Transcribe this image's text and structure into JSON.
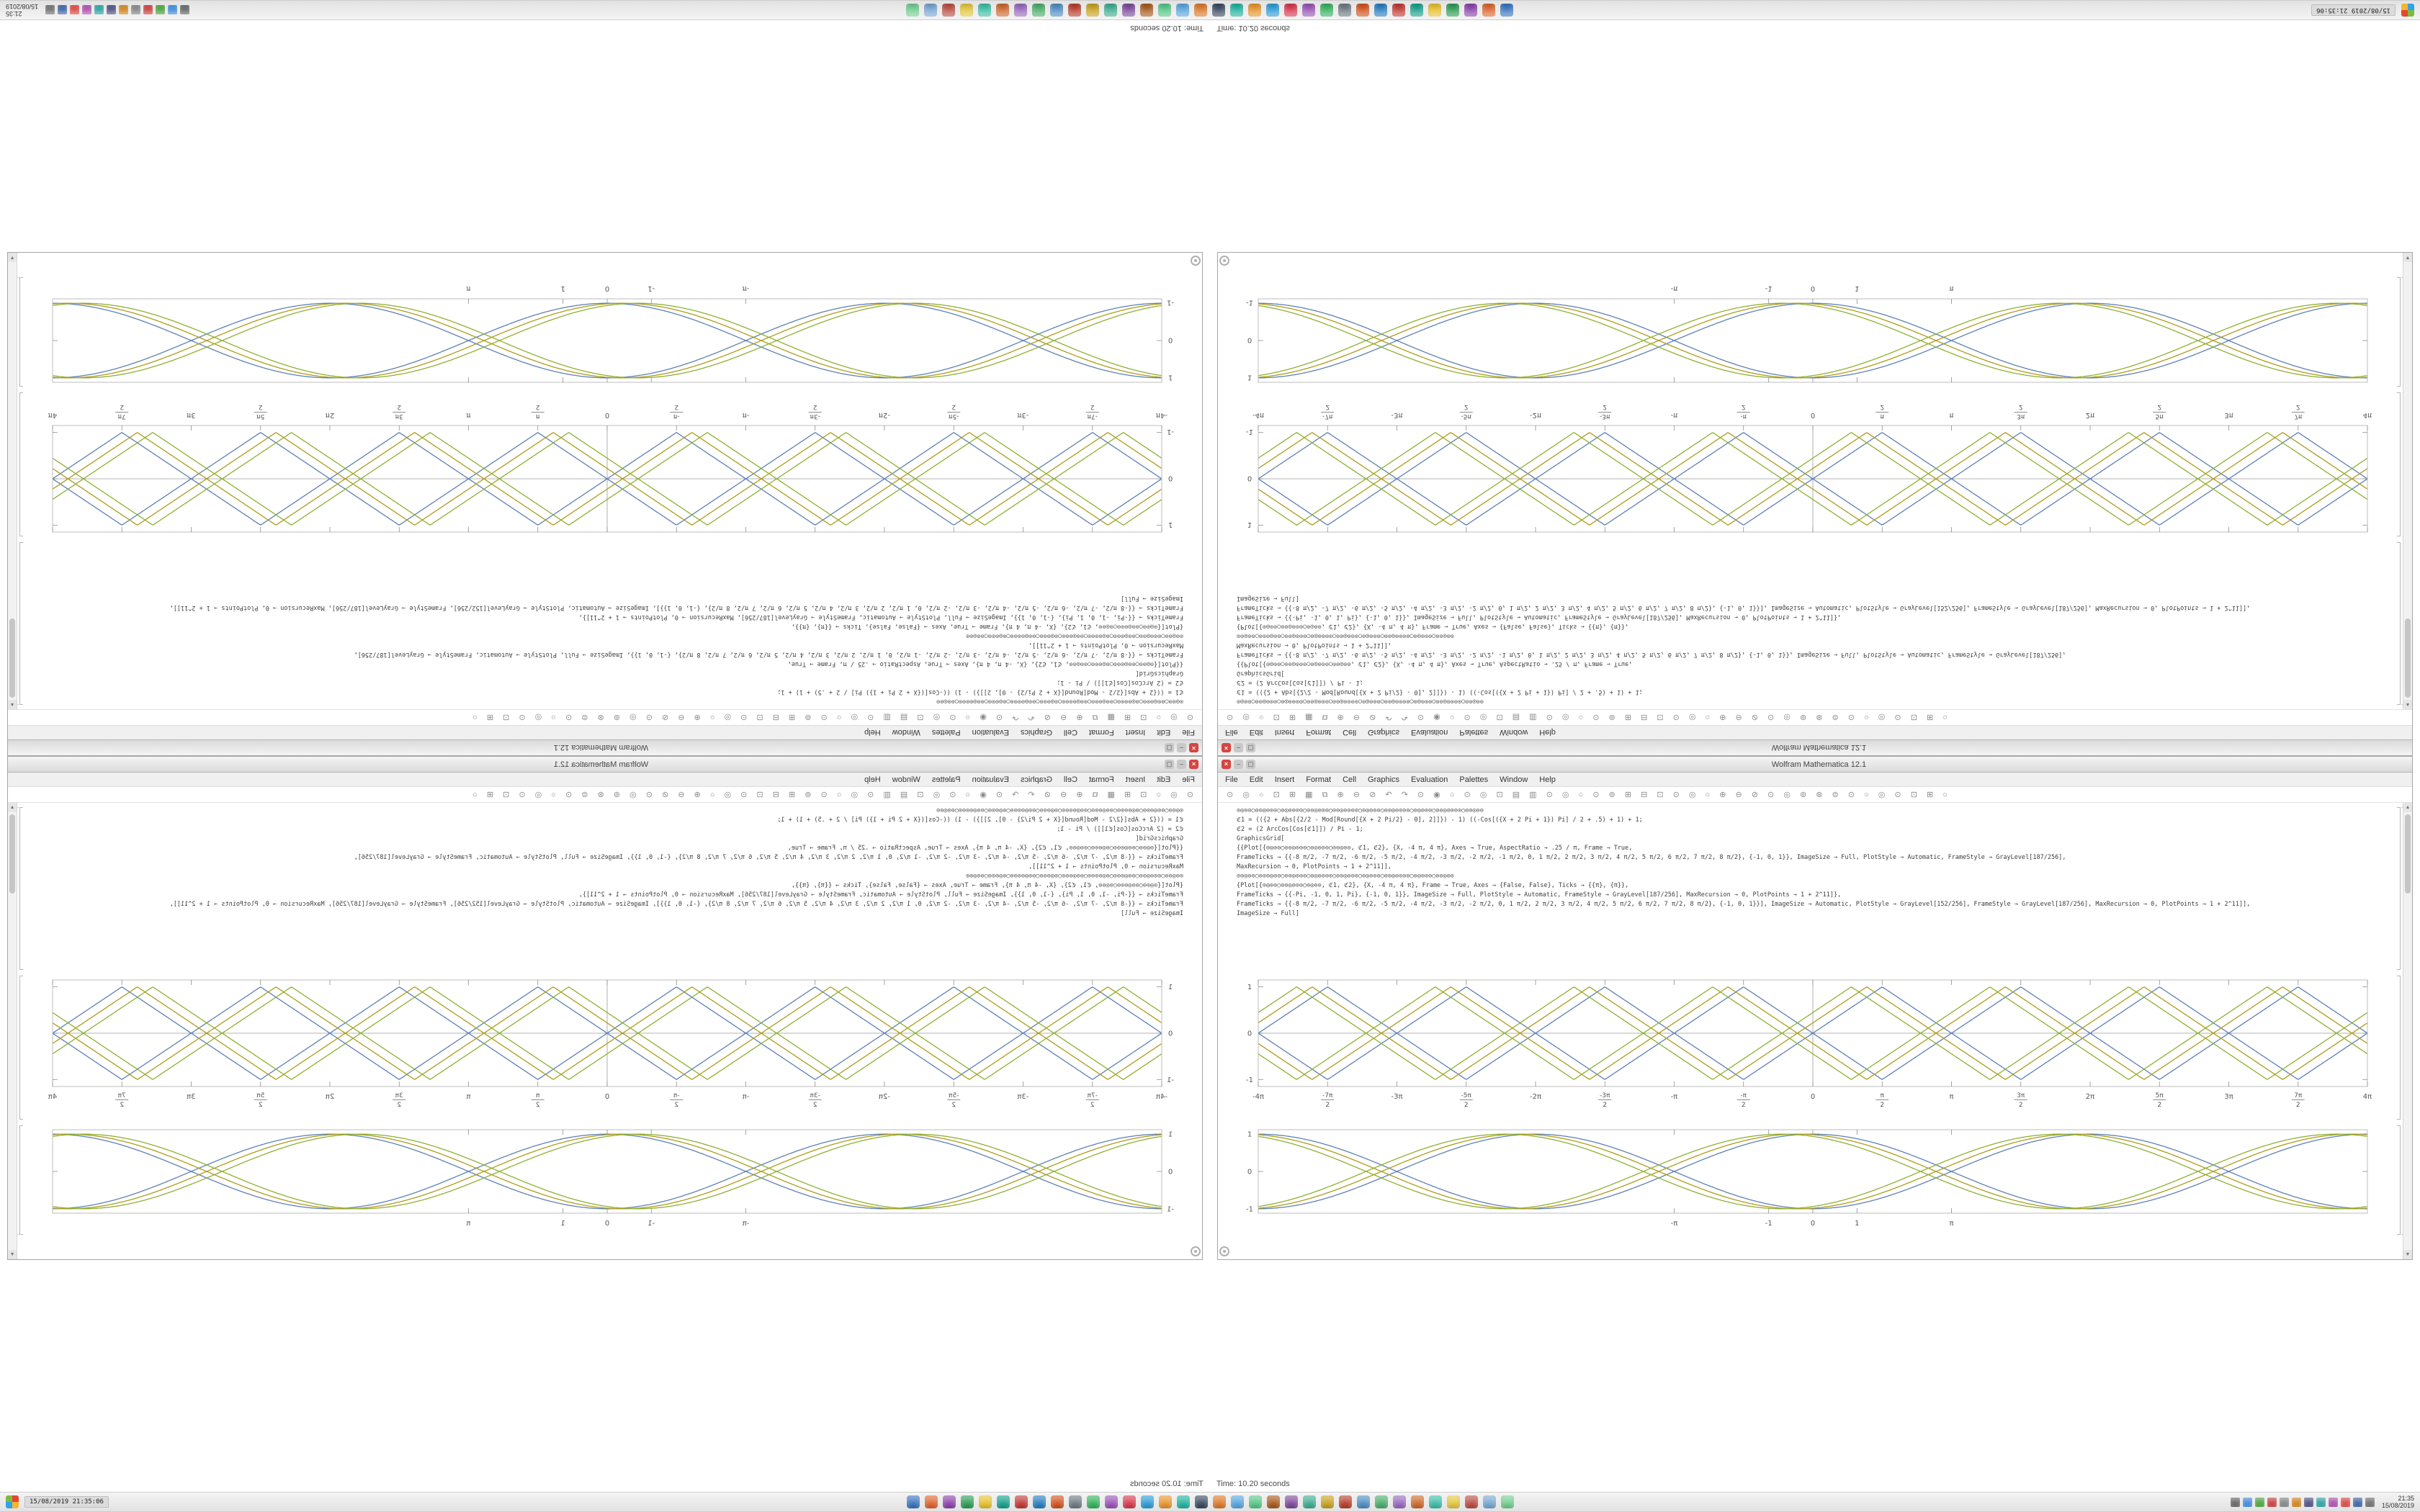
{
  "status": {
    "text": "Time: 10.20 seconds"
  },
  "taskbar": {
    "stamp": "15/08/2019  21:35:06",
    "clock_time": "21:35",
    "clock_date": "15/08/2019",
    "app_icons": [
      {
        "name": "app-icon-01",
        "color": "#3b76c0"
      },
      {
        "name": "app-icon-02",
        "color": "#e0662f"
      },
      {
        "name": "app-icon-03",
        "color": "#8e44ad"
      },
      {
        "name": "app-icon-04",
        "color": "#2f9e57"
      },
      {
        "name": "app-icon-05",
        "color": "#e8c22e"
      },
      {
        "name": "app-icon-06",
        "color": "#18a28f"
      },
      {
        "name": "app-icon-07",
        "color": "#c23b36"
      },
      {
        "name": "app-icon-08",
        "color": "#2a7fc2"
      },
      {
        "name": "app-icon-09",
        "color": "#d4541f"
      },
      {
        "name": "app-icon-10",
        "color": "#6f7b84"
      },
      {
        "name": "app-icon-11",
        "color": "#37b45f"
      },
      {
        "name": "app-icon-12",
        "color": "#9a55b8"
      },
      {
        "name": "app-icon-13",
        "color": "#d83a4e"
      },
      {
        "name": "app-icon-14",
        "color": "#2f9ed8"
      },
      {
        "name": "app-icon-15",
        "color": "#e8972e"
      },
      {
        "name": "app-icon-16",
        "color": "#22b5a0"
      },
      {
        "name": "app-icon-17",
        "color": "#3b4b63"
      },
      {
        "name": "app-icon-18",
        "color": "#dd7b2d"
      },
      {
        "name": "app-icon-19",
        "color": "#5aa7e0"
      },
      {
        "name": "app-icon-20",
        "color": "#57c987"
      },
      {
        "name": "app-icon-21",
        "color": "#a85c20"
      },
      {
        "name": "app-icon-22",
        "color": "#7e4b9e"
      },
      {
        "name": "app-icon-23",
        "color": "#3fae92"
      },
      {
        "name": "app-icon-24",
        "color": "#c9a422"
      },
      {
        "name": "app-icon-25",
        "color": "#b8402f"
      },
      {
        "name": "app-icon-26",
        "color": "#4f8fc4"
      },
      {
        "name": "app-icon-27",
        "color": "#4caf6e"
      },
      {
        "name": "app-icon-28",
        "color": "#9a6ac0"
      },
      {
        "name": "app-icon-29",
        "color": "#cf6a2e"
      },
      {
        "name": "app-icon-30",
        "color": "#3fbfa8"
      },
      {
        "name": "app-icon-31",
        "color": "#e5c83f"
      },
      {
        "name": "app-icon-32",
        "color": "#bb4f46"
      },
      {
        "name": "app-icon-33",
        "color": "#7aa8d4"
      },
      {
        "name": "app-icon-34",
        "color": "#74cf92"
      }
    ],
    "tray_icons": [
      {
        "name": "tray-icon-01",
        "color": "#6d6d6d"
      },
      {
        "name": "tray-icon-02",
        "color": "#4a90d9"
      },
      {
        "name": "tray-icon-03",
        "color": "#57a64a"
      },
      {
        "name": "tray-icon-04",
        "color": "#c94c4c"
      },
      {
        "name": "tray-icon-05",
        "color": "#8a8a8a"
      },
      {
        "name": "tray-icon-06",
        "color": "#d08a2e"
      },
      {
        "name": "tray-icon-07",
        "color": "#5a5a8a"
      },
      {
        "name": "tray-icon-08",
        "color": "#3aa6a6"
      },
      {
        "name": "tray-icon-09",
        "color": "#b05ab0"
      },
      {
        "name": "tray-alert-icon",
        "color": "#d9534f"
      },
      {
        "name": "tray-icon-11",
        "color": "#4a6da9"
      },
      {
        "name": "tray-icon-12",
        "color": "#777777"
      }
    ]
  },
  "window": {
    "title": "Wolfram Mathematica 12.1",
    "close_label": "×",
    "minimize_label": "–",
    "maximize_label": "▢",
    "scroll_up": "▲",
    "scroll_down": "▼",
    "menu": [
      "File",
      "Edit",
      "Insert",
      "Format",
      "Cell",
      "Graphics",
      "Evaluation",
      "Palettes",
      "Window",
      "Help"
    ],
    "toolbar_glyphs": "⊙ ◎ ○ ⊡ ⊞ ▦ ⧉ ⊕ ⊖ ⊘ ↶ ↷ ⊙ ◉ ○ ⊙ ◎ ⊡ ▤ ▥ ⊙ ◎ ○ ⊙ ⊚ ⊞ ⊟ ⊡ ⊙ ◎ ○ ⊕ ⊖ ⊘ ⊙ ◎ ⊚ ⊛ ⊜ ⊙ ○ ◎ ⊙ ⊡ ⊞ ○",
    "code_lines": [
      "⊙◎⊙⊙○⊙⊙◎⊙⊙⊙○⊙◎⊙⊙⊙⊙○⊙⊙◎⊙⊙⊙○⊙⊙◎⊙⊙⊙⊙○⊙◎⊙⊙⊙○⊙⊙◎⊙⊙⊙⊙○⊙◎⊙⊙⊙○⊙⊙◎⊙⊙⊙⊙○⊙⊙◎⊙⊙",
      "ℭ1 = (({2 + Abs[{2/2 - Mod[Round[{X + 2 Pi/2} - 0], 2]]}) - 1) ((-Cos[({X + 2 Pi + 1}) Pi] / 2 + .5) + 1) + 1;",
      "ℭ2 = (2 ArcCos[Cos[ℭ1]]) / Pi - 1;",
      "GraphicsGrid[",
      "{{Plot[{⊙◎⊙⊙○⊙⊙◎⊙⊙⊙○⊙◎⊙⊙⊙○⊙⊙◎⊙⊙, ℭ1, ℭ2}, {X, -4 π, 4 π}, Axes → True, AspectRatio → .25 / π, Frame → True,",
      "FrameTicks → {{-8 π/2, -7 π/2, -6 π/2, -5 π/2, -4 π/2, -3 π/2, -2 π/2, -1 π/2, 0, 1 π/2, 2 π/2, 3 π/2, 4 π/2, 5 π/2, 6 π/2, 7 π/2, 8 π/2}, {-1, 0, 1}}, ImageSize → Full, PlotStyle → Automatic, FrameStyle → GrayLevel[187/256],",
      "MaxRecursion → 0, PlotPoints → 1 + 2^11]],",
      "⊙⊙◎⊙⊙○⊙⊙⊙◎⊙⊙○⊙⊙◎⊙⊙⊙○⊙◎⊙⊙⊙⊙○⊙⊙◎⊙⊙⊙○⊙◎⊙⊙⊙○⊙⊙◎⊙⊙⊙⊙○⊙◎⊙⊙⊙○⊙⊙◎⊙⊙",
      "{Plot[{⊙◎⊙⊙○⊙⊙◎⊙⊙⊙○⊙◎⊙⊙, ℭ1, ℭ2}, {X, -4 π, 4 π}, Frame → True, Axes → {False, False}, Ticks → {{π}, {π}},",
      "FrameTicks → {{-Pi, -1, 0, 1, Pi}, {-1, 0, 1}}, ImageSize → Full, PlotStyle → Automatic, FrameStyle → GrayLevel[187/256], MaxRecursion → 0, PlotPoints → 1 + 2^11]},",
      "FrameTicks → {{-8 π/2, -7 π/2, -6 π/2, -5 π/2, -4 π/2, -3 π/2, -2 π/2, 0, 1 π/2, 2 π/2, 3 π/2, 4 π/2, 5 π/2, 6 π/2, 7 π/2, 8 π/2}, {-1, 0, 1}}], ImageSize → Automatic, PlotStyle → GrayLevel[152/256], FrameStyle → GrayLevel[187/256], MaxRecursion → 0, PlotPoints → 1 + 2^11]],",
      "ImageSize → Full]"
    ]
  },
  "colors": {
    "close_button": "#d64541",
    "plot_frame": "#bcbcbc",
    "curve_blue": "#5e81b5",
    "curve_olive": "#ad9c1c",
    "curve_green": "#8fb032"
  },
  "chart_data": [
    {
      "type": "line",
      "name": "triangle-wave-plot",
      "wave": "triangle",
      "x_range": [
        -12.566,
        12.566
      ],
      "ylim": [
        -1.15,
        1.15
      ],
      "period": 6.283,
      "phases": [
        0,
        0.35,
        0.7
      ],
      "mirrored": true,
      "colors": [
        "#5e81b5",
        "#ad9c1c",
        "#8fb032"
      ],
      "axes": true,
      "grid": false,
      "legend": false,
      "x_ticks": [
        {
          "pos": -12.566,
          "label": "-4π"
        },
        {
          "pos": -10.996,
          "label": "-7π/2"
        },
        {
          "pos": -9.425,
          "label": "-3π"
        },
        {
          "pos": -7.854,
          "label": "-5π/2"
        },
        {
          "pos": -6.283,
          "label": "-2π"
        },
        {
          "pos": -4.712,
          "label": "-3π/2"
        },
        {
          "pos": -3.142,
          "label": "-π"
        },
        {
          "pos": -1.571,
          "label": "-π/2"
        },
        {
          "pos": 0,
          "label": "0"
        },
        {
          "pos": 1.571,
          "label": "π/2"
        },
        {
          "pos": 3.142,
          "label": "π"
        },
        {
          "pos": 4.712,
          "label": "3π/2"
        },
        {
          "pos": 6.283,
          "label": "2π"
        },
        {
          "pos": 7.854,
          "label": "5π/2"
        },
        {
          "pos": 9.425,
          "label": "3π"
        },
        {
          "pos": 10.996,
          "label": "7π/2"
        },
        {
          "pos": 12.566,
          "label": "4π"
        }
      ],
      "y_ticks": [
        {
          "pos": -1,
          "label": "-1"
        },
        {
          "pos": 0,
          "label": "0"
        },
        {
          "pos": 1,
          "label": "1"
        }
      ]
    },
    {
      "type": "line",
      "name": "cosine-wave-plot",
      "wave": "cosine",
      "x_range": [
        -12.566,
        12.566
      ],
      "ylim": [
        -1.12,
        1.12
      ],
      "period": 12.566,
      "phases": [
        0,
        0.35,
        0.7
      ],
      "mirrored": true,
      "colors": [
        "#5e81b5",
        "#ad9c1c",
        "#8fb032"
      ],
      "axes": false,
      "grid": false,
      "legend": false,
      "x_ticks": [
        {
          "pos": -3.142,
          "label": "-π"
        },
        {
          "pos": -1,
          "label": "-1"
        },
        {
          "pos": 0,
          "label": "0"
        },
        {
          "pos": 1,
          "label": "1"
        },
        {
          "pos": 3.142,
          "label": "π"
        }
      ],
      "y_ticks": [
        {
          "pos": -1,
          "label": "-1"
        },
        {
          "pos": 0,
          "label": "0"
        },
        {
          "pos": 1,
          "label": "1"
        }
      ]
    }
  ]
}
